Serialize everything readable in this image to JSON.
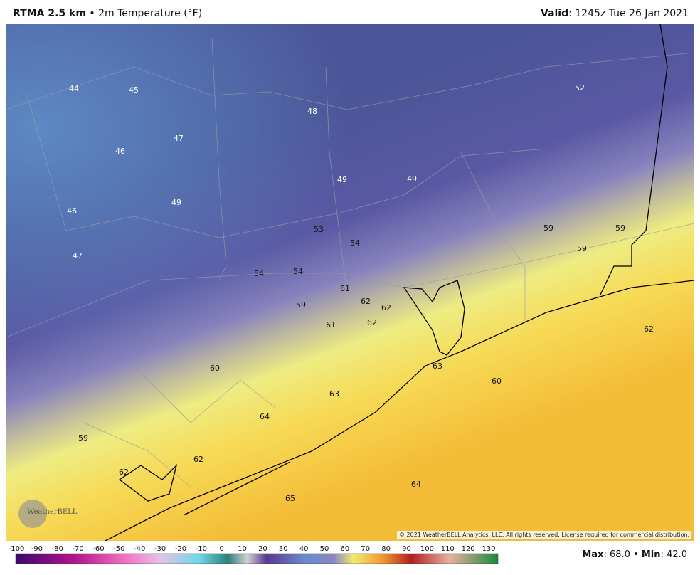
{
  "header": {
    "product": "RTMA 2.5 km",
    "separator": "•",
    "field": "2m Temperature (°F)",
    "valid_label": "Valid",
    "valid_time": ": 1245z Tue 26 Jan 2021"
  },
  "map_labels": [
    "44",
    "45",
    "47",
    "48",
    "52",
    "46",
    "49",
    "49",
    "46",
    "49",
    "53",
    "54",
    "59",
    "59",
    "59",
    "47",
    "54",
    "54",
    "61",
    "62",
    "62",
    "59",
    "61",
    "62",
    "62",
    "63",
    "60",
    "60",
    "63",
    "64",
    "59",
    "62",
    "62",
    "64",
    "65"
  ],
  "logo": "WeatherBELL",
  "copyright": "© 2021 WeatherBELL Analytics, LLC. All rights reserved. License required for commercial distribution.",
  "colorbar_ticks": [
    "-100",
    "-90",
    "-80",
    "-70",
    "-60",
    "-50",
    "-40",
    "-30",
    "-20",
    "-10",
    "0",
    "10",
    "20",
    "30",
    "40",
    "50",
    "60",
    "70",
    "80",
    "90",
    "100",
    "110",
    "120",
    "130"
  ],
  "stats": {
    "max_label": "Max",
    "max_value": ": 68.0",
    "separator": "•",
    "min_label": "Min",
    "min_value": ": 42.0"
  }
}
